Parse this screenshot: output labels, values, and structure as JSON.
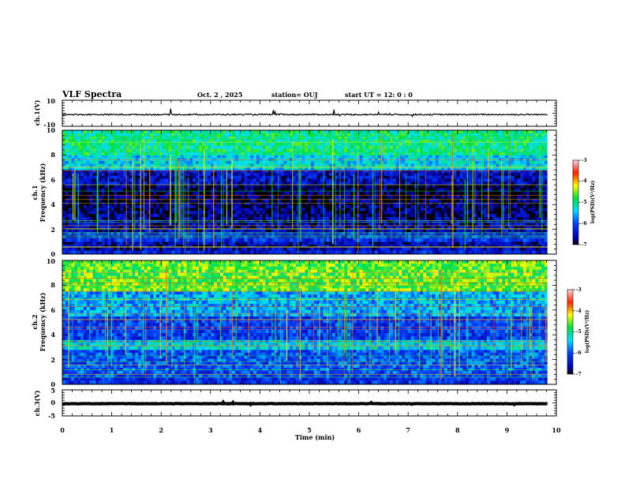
{
  "chart_data": {
    "type": "heatmap",
    "title": "VLF Spectra",
    "date": "Oct. 2  , 2025",
    "station": "station= OUJ",
    "start_time": "start  UT  =    12: 0  : 0",
    "xlabel": "Time  (min)",
    "xlim": [
      0,
      10
    ],
    "x_ticks": [
      "0",
      "1",
      "2",
      "3",
      "4",
      "5",
      "6",
      "7",
      "8",
      "9",
      "10"
    ],
    "data_end_min": 9.82,
    "waveform_top": {
      "label": "ch.1(V)",
      "ylim": [
        -10,
        10
      ],
      "tick_labels": [
        "10",
        "-10"
      ],
      "baseline": -1.0,
      "amplitude": 1.0
    },
    "spectrogram_ch1": {
      "label_line1": "ch.1",
      "label_line2": "Frequency  (kHz)",
      "ylim": [
        0,
        10
      ],
      "tick_labels": [
        "0",
        "2",
        "4",
        "6",
        "8",
        "10"
      ],
      "colorbar": {
        "label": "log(PSD)(V²/Hz)",
        "ticks": [
          "-3",
          "-4",
          "-5",
          "-6",
          "-7"
        ],
        "range": [
          -7,
          -3
        ]
      },
      "bands": [
        {
          "f_low": 0.0,
          "f_high": 0.3,
          "level": -6.3
        },
        {
          "f_low": 0.3,
          "f_high": 1.0,
          "level": -6.6
        },
        {
          "f_low": 1.0,
          "f_high": 1.8,
          "level": -6.2
        },
        {
          "f_low": 1.8,
          "f_high": 3.0,
          "level": -6.6
        },
        {
          "f_low": 3.0,
          "f_high": 4.2,
          "level": -6.8
        },
        {
          "f_low": 4.2,
          "f_high": 5.6,
          "level": -6.9
        },
        {
          "f_low": 5.6,
          "f_high": 6.8,
          "level": -6.5
        },
        {
          "f_low": 6.8,
          "f_high": 8.0,
          "level": -5.4
        },
        {
          "f_low": 8.0,
          "f_high": 10.0,
          "level": -5.0
        }
      ]
    },
    "spectrogram_ch2": {
      "label_line1": "ch.2",
      "label_line2": "Frequency  (kHz)",
      "ylim": [
        0,
        10
      ],
      "tick_labels": [
        "0",
        "2",
        "4",
        "6",
        "8",
        "10"
      ],
      "colorbar": {
        "label": "log(PSD)(V²/Hz)",
        "ticks": [
          "-3",
          "-4",
          "-5",
          "-6",
          "-7"
        ],
        "range": [
          -7,
          -3
        ]
      },
      "bands": [
        {
          "f_low": 0.0,
          "f_high": 0.6,
          "level": -6.2
        },
        {
          "f_low": 0.6,
          "f_high": 2.8,
          "level": -6.0
        },
        {
          "f_low": 2.8,
          "f_high": 3.6,
          "level": -5.4
        },
        {
          "f_low": 3.6,
          "f_high": 5.5,
          "level": -6.1
        },
        {
          "f_low": 5.5,
          "f_high": 7.5,
          "level": -5.6
        },
        {
          "f_low": 7.5,
          "f_high": 10.0,
          "level": -4.6
        }
      ]
    },
    "waveform_bottom": {
      "label": "ch.3(V)",
      "ylim": [
        -5,
        5
      ],
      "tick_labels": [
        "5",
        "0",
        "-5"
      ],
      "baseline": -0.3,
      "amplitude": 0.15
    }
  }
}
